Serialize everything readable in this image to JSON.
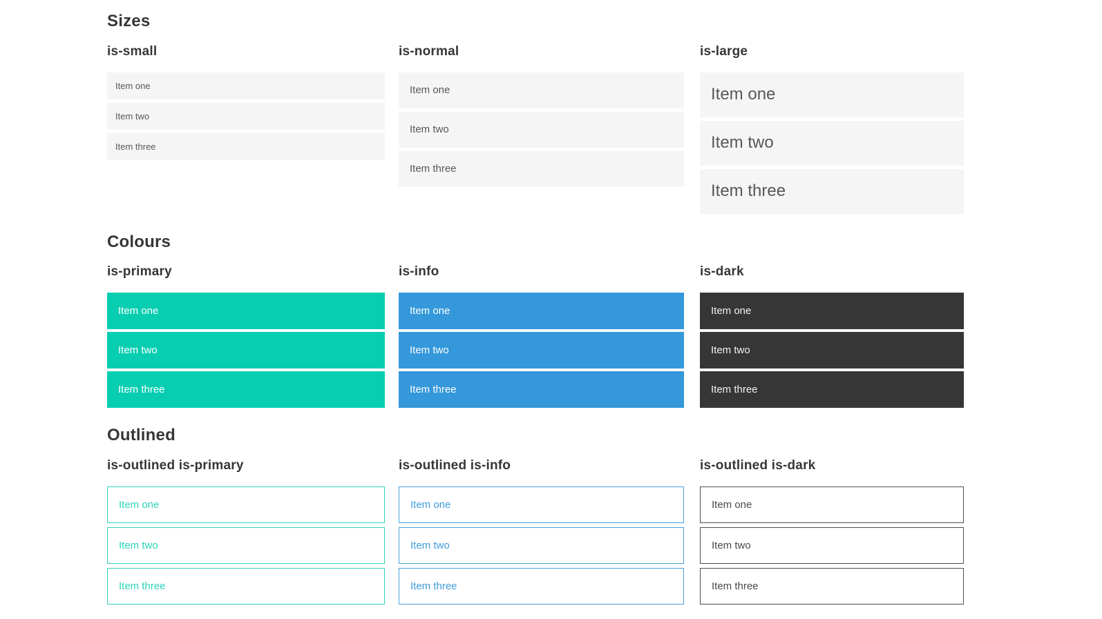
{
  "sections": [
    {
      "title": "Sizes",
      "columns": [
        {
          "label": "is-small",
          "items": [
            "Item one",
            "Item two",
            "Item three"
          ]
        },
        {
          "label": "is-normal",
          "items": [
            "Item one",
            "Item two",
            "Item three"
          ]
        },
        {
          "label": "is-large",
          "items": [
            "Item one",
            "Item two",
            "Item three"
          ]
        }
      ]
    },
    {
      "title": "Colours",
      "columns": [
        {
          "label": "is-primary",
          "items": [
            "Item one",
            "Item two",
            "Item three"
          ]
        },
        {
          "label": "is-info",
          "items": [
            "Item one",
            "Item two",
            "Item three"
          ]
        },
        {
          "label": "is-dark",
          "items": [
            "Item one",
            "Item two",
            "Item three"
          ]
        }
      ]
    },
    {
      "title": "Outlined",
      "columns": [
        {
          "label": "is-outlined is-primary",
          "items": [
            "Item one",
            "Item two",
            "Item three"
          ]
        },
        {
          "label": "is-outlined is-info",
          "items": [
            "Item one",
            "Item two",
            "Item three"
          ]
        },
        {
          "label": "is-outlined is-dark",
          "items": [
            "Item one",
            "Item two",
            "Item three"
          ]
        }
      ]
    }
  ],
  "colors": {
    "primary": "#08ceb1",
    "info": "#3498db",
    "dark": "#363636",
    "item_background": "#f5f5f5",
    "item_text": "#575757",
    "heading_text": "#363636"
  }
}
